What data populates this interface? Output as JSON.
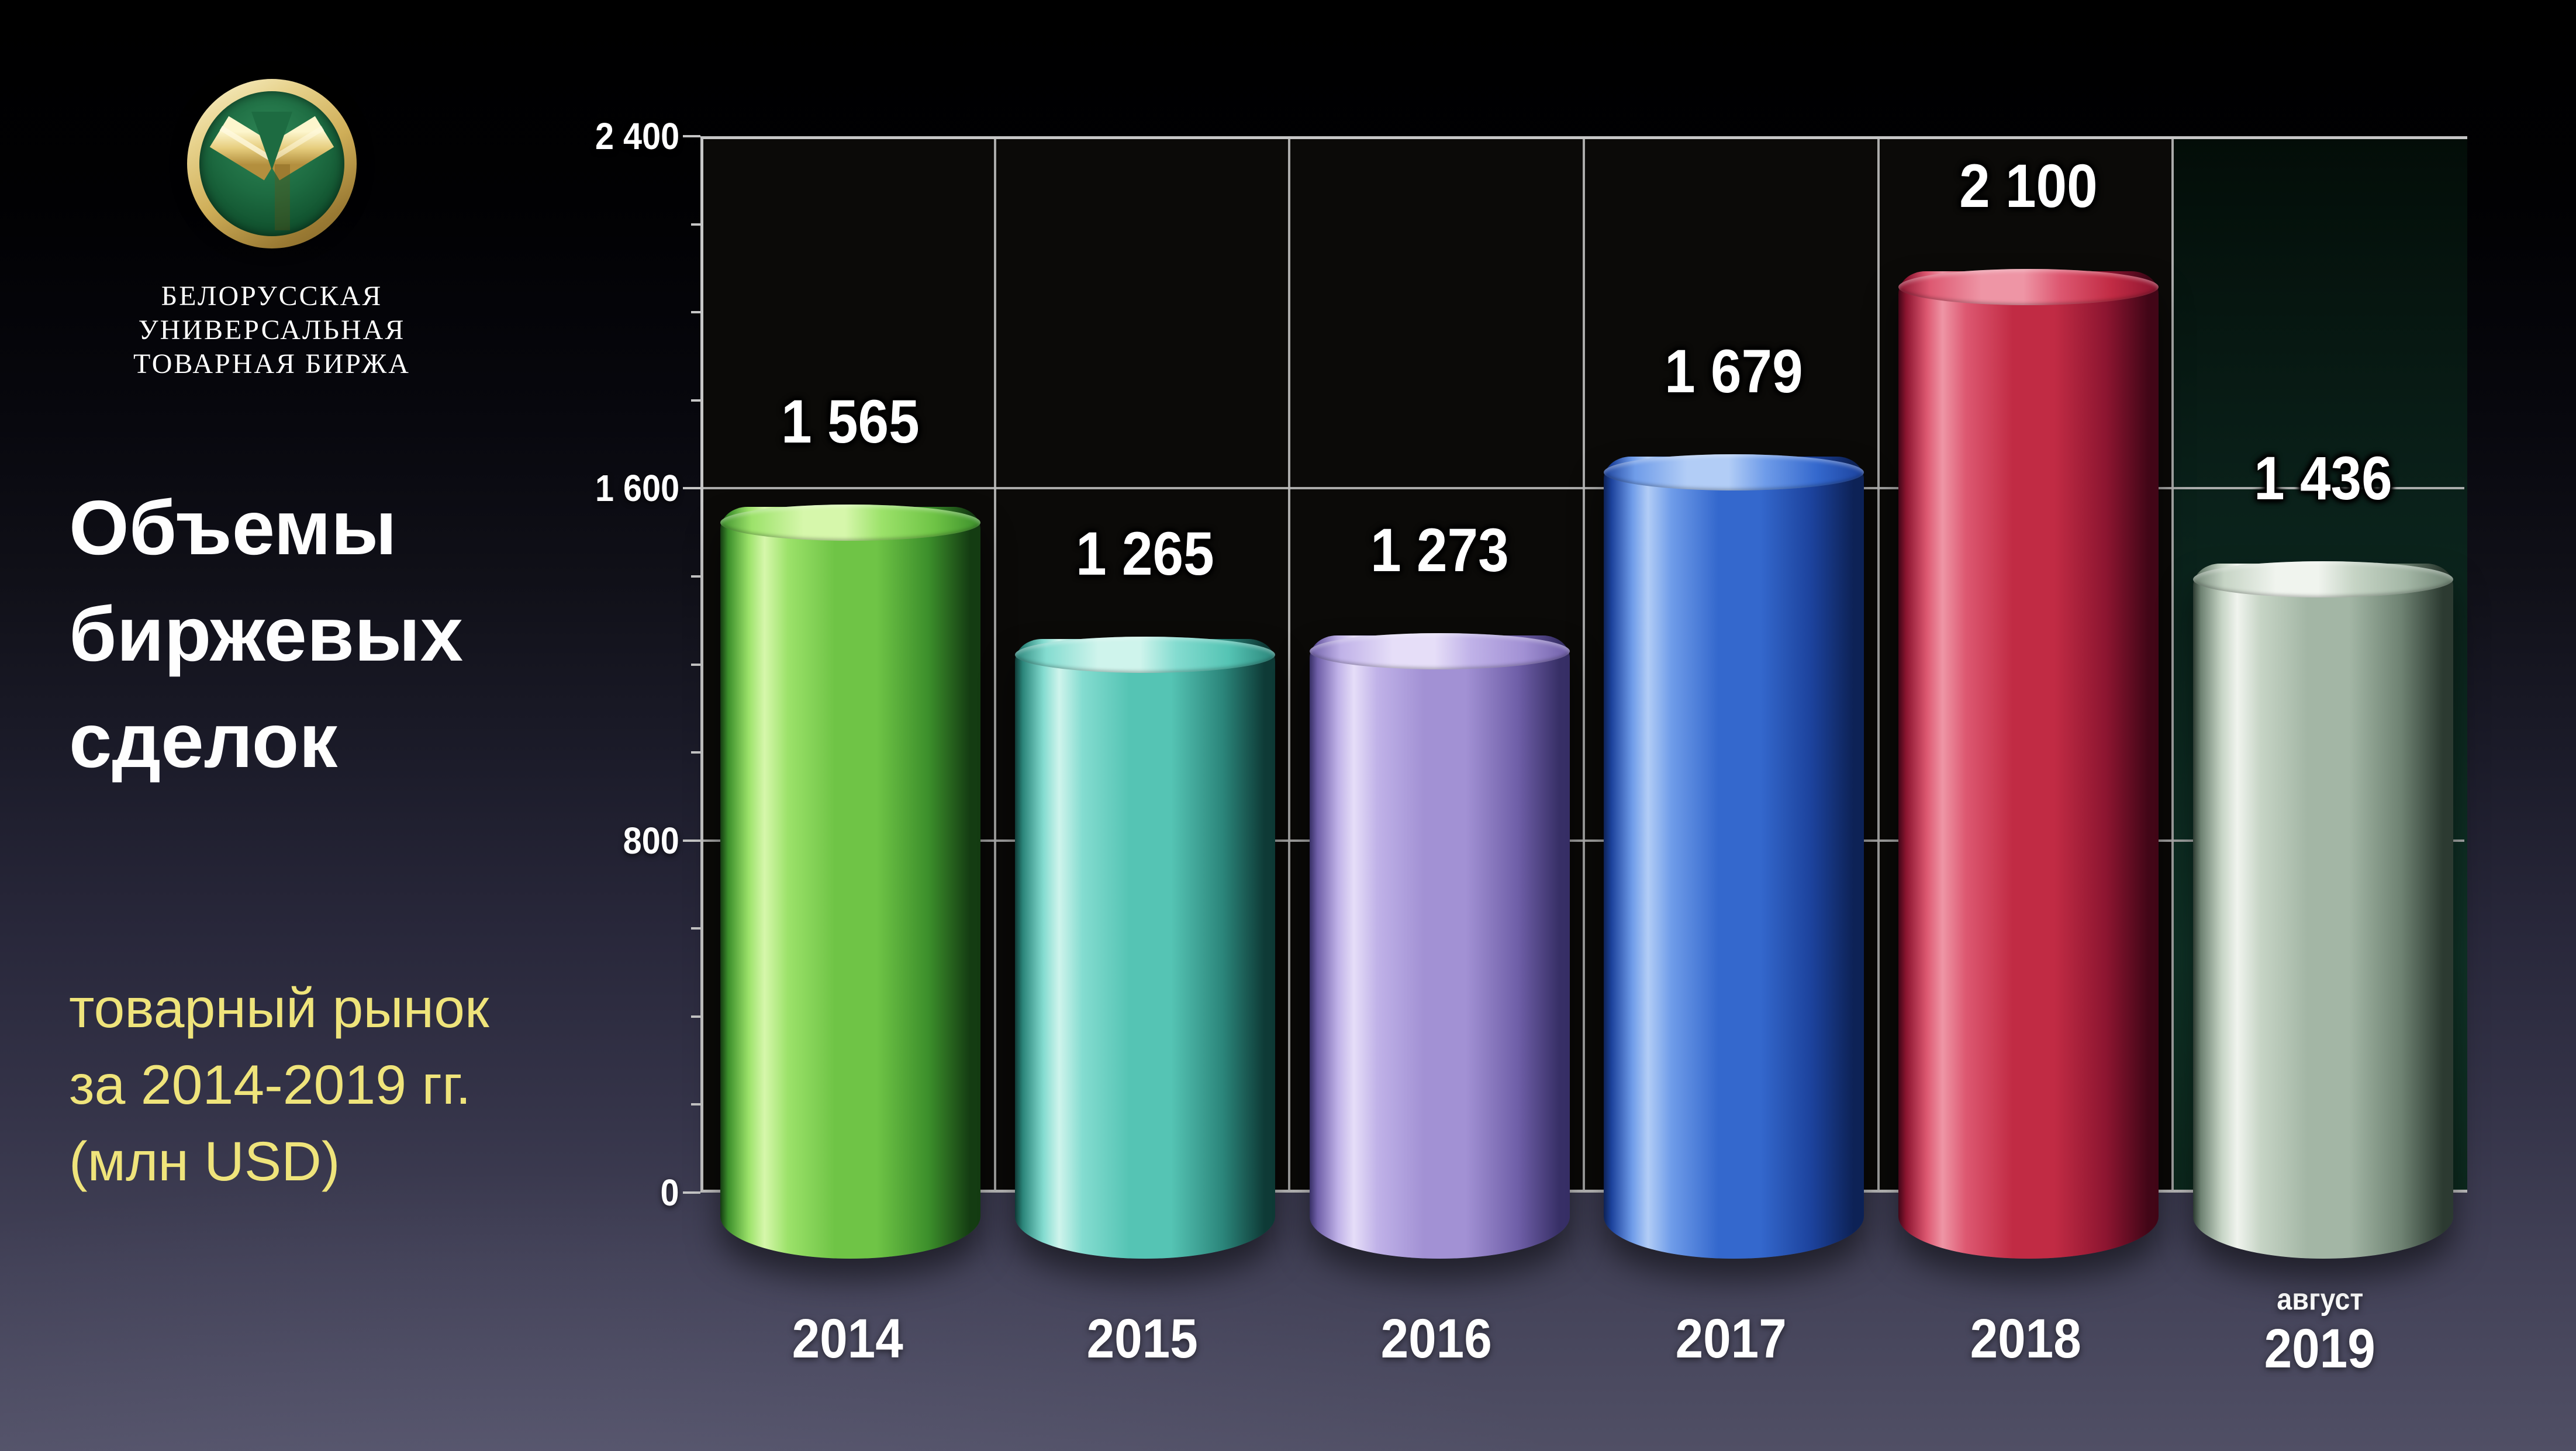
{
  "logo": {
    "org_lines": [
      "БЕЛОРУССКАЯ",
      "УНИВЕРСАЛЬНАЯ",
      "ТОВАРНАЯ БИРЖА"
    ]
  },
  "title": {
    "lines": [
      "Объемы",
      "биржевых",
      "сделок"
    ]
  },
  "subtitle": {
    "lines": [
      "товарный рынок",
      "за 2014-2019 гг.",
      "(млн USD)"
    ]
  },
  "chart_data": {
    "type": "bar",
    "title": "Объемы биржевых сделок",
    "subtitle": "товарный рынок за 2014-2019 гг. (млн USD)",
    "categories": [
      "2014",
      "2015",
      "2016",
      "2017",
      "2018",
      "август 2019"
    ],
    "last_category_lines": [
      "август",
      "2019"
    ],
    "values": [
      1565,
      1265,
      1273,
      1679,
      2100,
      1436
    ],
    "value_labels": [
      "1 565",
      "1 265",
      "1 273",
      "1 679",
      "2 100",
      "1 436"
    ],
    "ylim": [
      0,
      2400
    ],
    "yticks": [
      0,
      800,
      1600,
      2400
    ],
    "ytick_labels": [
      "0",
      "800",
      "1 600",
      "2 400"
    ],
    "ytick_minor_step": 200,
    "grid": true,
    "legend": false,
    "bar_colors": [
      {
        "name": "green",
        "pale": "#d6f7ab",
        "hi": "#9ce26a",
        "mid": "#6fc446",
        "dark": "#3c8f2b",
        "edge": "#143c12"
      },
      {
        "name": "teal",
        "pale": "#cff4ec",
        "hi": "#84dcd0",
        "mid": "#55c4b4",
        "dark": "#2b857a",
        "edge": "#0e3a36"
      },
      {
        "name": "purple",
        "pale": "#e6def8",
        "hi": "#c0b2e8",
        "mid": "#a291d4",
        "dark": "#6f5fa8",
        "edge": "#372f66"
      },
      {
        "name": "blue",
        "pale": "#b2cdf6",
        "hi": "#6f9ce9",
        "mid": "#3468cd",
        "dark": "#1c429c",
        "edge": "#0d2256"
      },
      {
        "name": "red",
        "pale": "#ee95a5",
        "hi": "#dd5871",
        "mid": "#c12b44",
        "dark": "#8c1530",
        "edge": "#420617"
      },
      {
        "name": "sage",
        "pale": "#f0f4ee",
        "hi": "#c6d4c5",
        "mid": "#a3b6a5",
        "dark": "#6e8272",
        "edge": "#2c3a31"
      }
    ],
    "last_column_bg": "#0d2b1f",
    "plot_bg": "#0b0a08",
    "grid_color": "#bdbdbd"
  },
  "colors": {
    "accent_yellow": "#efe47b",
    "logo_gold": "#cfae58",
    "logo_green": "#1d6b41",
    "text_white": "#ffffff",
    "bg_top": "#000000",
    "bg_bottom": "#504f65"
  }
}
